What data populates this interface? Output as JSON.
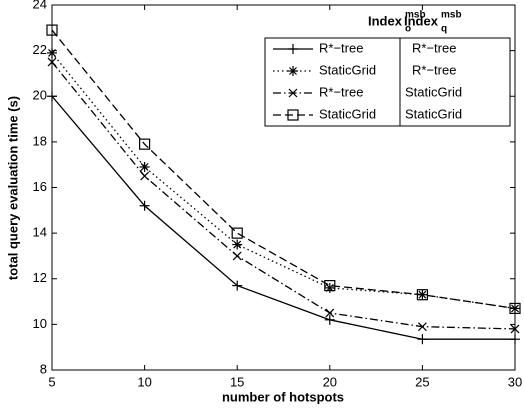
{
  "chart_data": {
    "type": "line",
    "xlabel": "number of hotspots",
    "ylabel": "total query evaluation time (s)",
    "x": [
      5,
      10,
      15,
      20,
      25,
      30
    ],
    "xlim": [
      5,
      30
    ],
    "xticks": [
      5,
      10,
      15,
      20,
      25,
      30
    ],
    "ylim": [
      8,
      24
    ],
    "yticks": [
      8,
      10,
      12,
      14,
      16,
      18,
      20,
      22,
      24
    ],
    "legend_header": [
      {
        "text": "Index",
        "sup": "msb",
        "sub": "o"
      },
      {
        "text": "Index",
        "sup": "msb",
        "sub": "q"
      }
    ],
    "series": [
      {
        "name": "R*−tree",
        "index_q": "R*−tree",
        "color": "#000000",
        "line_style": "solid",
        "marker": "plus",
        "values": [
          20.0,
          15.2,
          11.7,
          10.2,
          9.35,
          9.35
        ]
      },
      {
        "name": "StaticGrid",
        "index_q": "R*−tree",
        "color": "#000000",
        "line_style": "dotted",
        "marker": "asterisk",
        "values": [
          21.9,
          16.9,
          13.5,
          11.6,
          11.3,
          10.7
        ]
      },
      {
        "name": "R*−tree",
        "index_q": "StaticGrid",
        "color": "#000000",
        "line_style": "dashdot",
        "marker": "x",
        "values": [
          21.5,
          16.5,
          13.0,
          10.5,
          9.9,
          9.8
        ]
      },
      {
        "name": "StaticGrid",
        "index_q": "StaticGrid",
        "color": "#000000",
        "line_style": "dashed",
        "marker": "square",
        "values": [
          22.9,
          17.9,
          14.0,
          11.7,
          11.3,
          10.7
        ]
      }
    ]
  }
}
